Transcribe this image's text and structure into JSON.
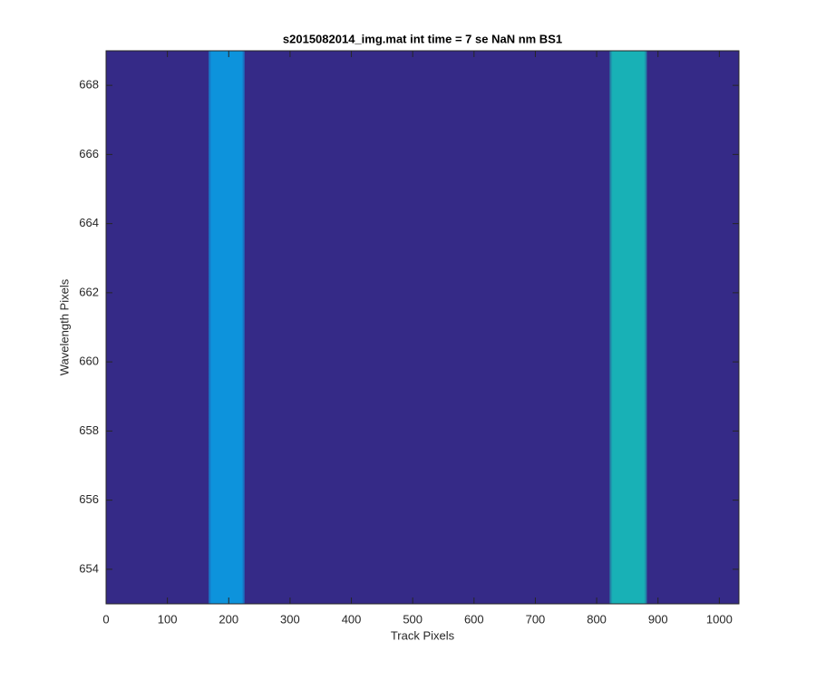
{
  "chart_data": {
    "type": "image",
    "title": "s2015082014_img.mat int time = 7 se  NaN nm BS1",
    "x_label": "Track Pixels",
    "y_label": "Wavelength Pixels",
    "background": "#352a87",
    "bands": [
      {
        "x0": 167,
        "x1": 226,
        "color": "#0d93dc"
      },
      {
        "x0": 821,
        "x1": 882,
        "color": "#18b1b6"
      }
    ],
    "xlim": [
      0,
      1032
    ],
    "ylim": [
      653,
      669
    ],
    "xticks": [
      0,
      100,
      200,
      300,
      400,
      500,
      600,
      700,
      800,
      900,
      1000
    ],
    "yticks": [
      654,
      656,
      658,
      660,
      662,
      664,
      666,
      668
    ]
  }
}
